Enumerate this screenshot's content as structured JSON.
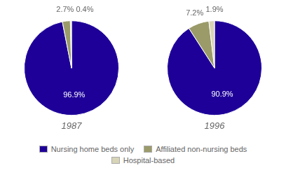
{
  "chart_data": [
    {
      "type": "pie",
      "title": "1987",
      "categories": [
        "Nursing home beds only",
        "Affiliated non-nursing beds",
        "Hospital-based"
      ],
      "values": [
        96.9,
        2.7,
        0.4
      ],
      "value_labels": [
        "96.9%",
        "2.7%",
        "0.4%"
      ],
      "colors": [
        "#1e0099",
        "#9b9b6a",
        "#d8d4b8"
      ],
      "data_labels": true,
      "legend": "bottom"
    },
    {
      "type": "pie",
      "title": "1996",
      "categories": [
        "Nursing home beds only",
        "Affiliated non-nursing beds",
        "Hospital-based"
      ],
      "values": [
        90.9,
        7.2,
        1.9
      ],
      "value_labels": [
        "90.9%",
        "7.2%",
        "1.9%"
      ],
      "colors": [
        "#1e0099",
        "#9b9b6a",
        "#d8d4b8"
      ],
      "data_labels": true,
      "legend": "bottom"
    }
  ]
}
